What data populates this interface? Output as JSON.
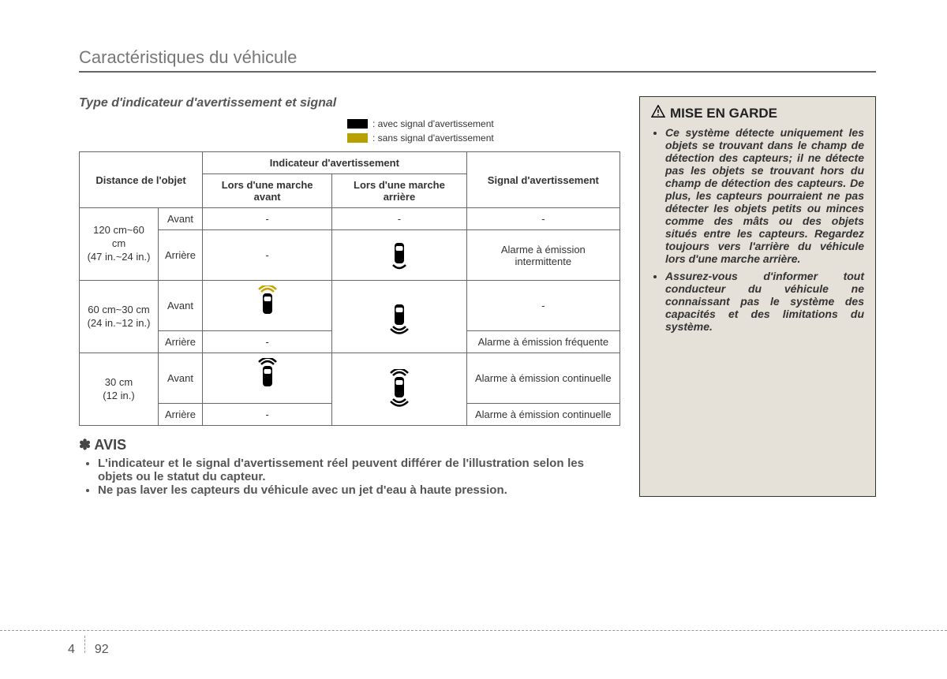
{
  "section_title": "Caractéristiques du véhicule",
  "sub_header": "Type d'indicateur d'avertissement et signal",
  "legend": {
    "with_signal": {
      "color": "#000000",
      "label": ": avec signal d'avertissement"
    },
    "without_signal": {
      "color": "#b8a000",
      "label": ": sans signal d'avertissement"
    }
  },
  "table": {
    "headers": {
      "distance": "Distance de l'objet",
      "indicator": "Indicateur d'avertissement",
      "forward": "Lors d'une marche avant",
      "reverse": "Lors d'une marche arrière",
      "signal": "Signal d'avertissement"
    },
    "position_labels": {
      "front": "Avant",
      "rear": "Arrière"
    },
    "rows": [
      {
        "distance": "120 cm~60 cm\n(47 in.~24 in.)",
        "front": {
          "fwd": "-",
          "rev": "-",
          "sig": "-"
        },
        "rear": {
          "fwd": "-",
          "rev": "icon_rear_1",
          "sig": "Alarme à émission intermittente"
        }
      },
      {
        "distance": "60 cm~30 cm\n(24 in.~12 in.)",
        "front": {
          "fwd": "icon_front_yellow",
          "rev": "",
          "sig": "-"
        },
        "rear": {
          "fwd": "-",
          "rev": "icon_rear_2",
          "sig": "Alarme à émission fréquente"
        }
      },
      {
        "distance": "30 cm\n(12 in.)",
        "front": {
          "fwd": "icon_front_black",
          "rev": "",
          "sig": "Alarme à émission continuelle"
        },
        "rear": {
          "fwd": "-",
          "rev": "icon_rear_3",
          "sig": "Alarme à émission continuelle"
        }
      }
    ]
  },
  "avis": {
    "title": "✽ AVIS",
    "items": [
      "L'indicateur et le signal d'avertissement réel peuvent différer de l'illustration selon les objets ou le statut du capteur.",
      "Ne pas laver les capteurs du véhicule avec un jet d'eau à haute pression."
    ]
  },
  "warning": {
    "title": "MISE EN GARDE",
    "items": [
      "Ce système détecte uniquement les objets se trouvant dans le champ de détection des capteurs; il ne détecte pas les objets se trouvant hors du champ de détection des capteurs. De plus, les capteurs pourraient ne pas détecter les objets petits ou minces comme des mâts ou des objets situés entre les capteurs. Regardez toujours vers l'arrière du véhicule lors d'une marche arrière.",
      "Assurez-vous d'informer tout conducteur du véhicule ne connaissant pas le système des capacités et des limitations du système."
    ]
  },
  "page_number": {
    "chapter": "4",
    "page": "92"
  },
  "icons": {
    "car_body_color": "#000000",
    "outline_color": "#000000",
    "beam_yellow": "#c9a200",
    "beam_black": "#000000"
  }
}
